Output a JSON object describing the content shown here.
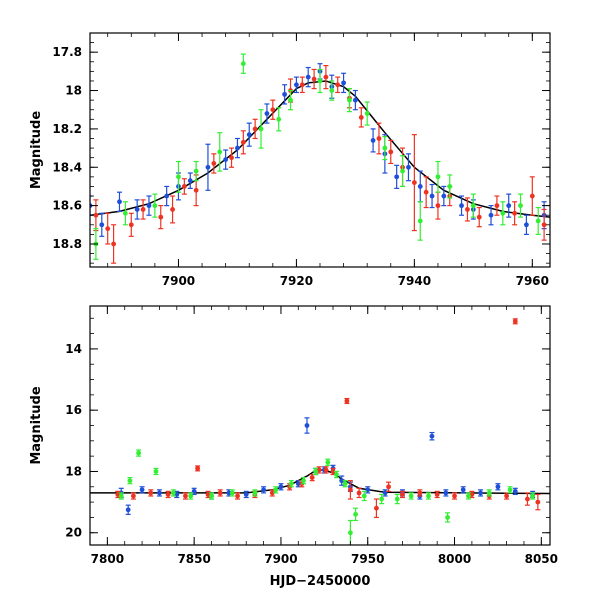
{
  "colors": {
    "blue": "#1f4fd8",
    "red": "#ee3322",
    "green": "#33ee33",
    "model": "#000000"
  },
  "chart_data": [
    {
      "type": "scatter",
      "panel": "top",
      "xlabel": "",
      "ylabel": "Magnitude",
      "xlim": [
        7885,
        7963
      ],
      "ylim": [
        18.92,
        17.7
      ],
      "y_inverted": true,
      "xticks": [
        7900,
        7920,
        7940,
        7960
      ],
      "yticks": [
        17.8,
        18.0,
        18.2,
        18.4,
        18.6,
        18.8
      ],
      "ytick_labels": [
        "17.8",
        "18",
        "18.2",
        "18.4",
        "18.6",
        "18.8"
      ],
      "model_curve": {
        "x": [
          7885,
          7890,
          7895,
          7900,
          7905,
          7910,
          7915,
          7920,
          7922,
          7925,
          7928,
          7930,
          7935,
          7940,
          7945,
          7950,
          7955,
          7960,
          7963
        ],
        "y": [
          18.65,
          18.63,
          18.59,
          18.52,
          18.43,
          18.31,
          18.15,
          17.99,
          17.96,
          17.95,
          17.98,
          18.03,
          18.22,
          18.4,
          18.52,
          18.59,
          18.63,
          18.65,
          18.66
        ]
      },
      "series_note": "Three photometric bands plotted as blue, red and green points with error bars",
      "series": [
        {
          "color": "blue",
          "x": [
            7885,
            7887,
            7890,
            7893,
            7895,
            7898,
            7900,
            7902,
            7905,
            7908,
            7910,
            7912,
            7915,
            7918,
            7920,
            7922,
            7924,
            7926,
            7928,
            7930,
            7933,
            7935,
            7937,
            7939,
            7941,
            7943,
            7945,
            7948,
            7950,
            7953,
            7956,
            7959,
            7962
          ],
          "y": [
            18.6,
            18.7,
            18.58,
            18.62,
            18.6,
            18.55,
            18.5,
            18.47,
            18.4,
            18.36,
            18.3,
            18.23,
            18.12,
            18.02,
            17.97,
            17.93,
            17.9,
            17.98,
            17.96,
            18.05,
            18.26,
            18.33,
            18.45,
            18.4,
            18.5,
            18.55,
            18.55,
            18.6,
            18.62,
            18.65,
            18.6,
            18.7,
            18.65
          ],
          "err": [
            0.05,
            0.06,
            0.05,
            0.05,
            0.05,
            0.05,
            0.07,
            0.04,
            0.12,
            0.05,
            0.05,
            0.06,
            0.05,
            0.05,
            0.04,
            0.05,
            0.04,
            0.06,
            0.05,
            0.05,
            0.06,
            0.1,
            0.06,
            0.07,
            0.08,
            0.06,
            0.05,
            0.05,
            0.05,
            0.05,
            0.06,
            0.05,
            0.07
          ]
        },
        {
          "color": "red",
          "x": [
            7886,
            7888,
            7889,
            7892,
            7894,
            7897,
            7899,
            7901,
            7903,
            7906,
            7909,
            7911,
            7913,
            7916,
            7919,
            7921,
            7923,
            7925,
            7927,
            7929,
            7931,
            7934,
            7936,
            7938,
            7940,
            7942,
            7944,
            7946,
            7949,
            7951,
            7954,
            7957,
            7960,
            7962
          ],
          "y": [
            18.65,
            18.72,
            18.8,
            18.7,
            18.62,
            18.66,
            18.62,
            18.5,
            18.52,
            18.38,
            18.35,
            18.27,
            18.2,
            18.1,
            18.0,
            17.97,
            17.94,
            17.93,
            17.97,
            18.04,
            18.14,
            18.25,
            18.32,
            18.4,
            18.48,
            18.53,
            18.6,
            18.55,
            18.62,
            18.66,
            18.6,
            18.64,
            18.55,
            18.7
          ],
          "err": [
            0.08,
            0.08,
            0.1,
            0.06,
            0.05,
            0.06,
            0.07,
            0.04,
            0.08,
            0.05,
            0.05,
            0.06,
            0.05,
            0.05,
            0.06,
            0.04,
            0.05,
            0.06,
            0.04,
            0.05,
            0.05,
            0.08,
            0.06,
            0.1,
            0.25,
            0.08,
            0.07,
            0.05,
            0.06,
            0.05,
            0.05,
            0.06,
            0.1,
            0.08
          ]
        },
        {
          "color": "green",
          "x": [
            7886,
            7891,
            7896,
            7900,
            7903,
            7907,
            7911,
            7914,
            7917,
            7919,
            7924,
            7926,
            7929,
            7932,
            7935,
            7938,
            7941,
            7944,
            7946,
            7950,
            7955,
            7958,
            7961
          ],
          "y": [
            18.8,
            18.64,
            18.6,
            18.45,
            18.42,
            18.32,
            17.86,
            18.2,
            18.15,
            18.05,
            17.95,
            18.0,
            18.05,
            18.12,
            18.3,
            18.42,
            18.68,
            18.45,
            18.5,
            18.6,
            18.64,
            18.6,
            18.68
          ],
          "err": [
            0.08,
            0.06,
            0.06,
            0.08,
            0.05,
            0.1,
            0.05,
            0.1,
            0.06,
            0.05,
            0.06,
            0.05,
            0.06,
            0.06,
            0.06,
            0.08,
            0.1,
            0.08,
            0.06,
            0.06,
            0.06,
            0.06,
            0.07
          ]
        }
      ]
    },
    {
      "type": "scatter",
      "panel": "bottom",
      "xlabel": "HJD−2450000",
      "ylabel": "Magnitude",
      "xlim": [
        7790,
        8055
      ],
      "ylim": [
        20.4,
        12.6
      ],
      "y_inverted": true,
      "xticks": [
        7800,
        7850,
        7900,
        7950,
        8000,
        8050
      ],
      "yticks": [
        14,
        16,
        18,
        20
      ],
      "ytick_labels": [
        "14",
        "16",
        "18",
        "20"
      ],
      "model_curve": {
        "x": [
          7790,
          7880,
          7895,
          7905,
          7915,
          7920,
          7925,
          7930,
          7935,
          7945,
          7960,
          8055
        ],
        "y": [
          18.7,
          18.7,
          18.6,
          18.45,
          18.15,
          17.97,
          17.95,
          18.05,
          18.25,
          18.55,
          18.68,
          18.72
        ]
      },
      "series": [
        {
          "color": "blue",
          "x": [
            7808,
            7812,
            7820,
            7830,
            7840,
            7850,
            7860,
            7870,
            7880,
            7890,
            7900,
            7910,
            7915,
            7920,
            7925,
            7930,
            7935,
            7940,
            7950,
            7960,
            7970,
            7980,
            7987,
            7995,
            8005,
            8015,
            8025,
            8035,
            8045
          ],
          "y": [
            18.7,
            19.25,
            18.6,
            18.7,
            18.75,
            18.65,
            18.8,
            18.7,
            18.75,
            18.6,
            18.5,
            18.4,
            16.5,
            18.0,
            17.95,
            17.9,
            18.3,
            18.5,
            18.6,
            18.7,
            18.7,
            18.8,
            16.85,
            18.7,
            18.6,
            18.7,
            18.5,
            18.65,
            18.75
          ],
          "err": [
            0.15,
            0.15,
            0.1,
            0.1,
            0.1,
            0.1,
            0.1,
            0.1,
            0.1,
            0.1,
            0.1,
            0.1,
            0.25,
            0.1,
            0.1,
            0.1,
            0.15,
            0.15,
            0.1,
            0.1,
            0.1,
            0.1,
            0.12,
            0.1,
            0.1,
            0.1,
            0.1,
            0.1,
            0.1
          ]
        },
        {
          "color": "red",
          "x": [
            7806,
            7815,
            7825,
            7835,
            7845,
            7852,
            7858,
            7865,
            7875,
            7885,
            7895,
            7905,
            7912,
            7918,
            7922,
            7926,
            7930,
            7938,
            7940,
            7945,
            7955,
            7962,
            7970,
            7980,
            7990,
            8000,
            8010,
            8020,
            8030,
            8035,
            8042,
            8048
          ],
          "y": [
            18.75,
            18.8,
            18.7,
            18.75,
            18.8,
            17.9,
            18.75,
            18.7,
            18.8,
            18.75,
            18.7,
            18.5,
            18.4,
            18.2,
            17.95,
            17.95,
            18.0,
            15.7,
            18.6,
            18.7,
            19.2,
            18.5,
            18.75,
            18.7,
            18.75,
            18.8,
            18.75,
            18.8,
            18.8,
            13.1,
            18.9,
            19.0
          ],
          "err": [
            0.1,
            0.1,
            0.1,
            0.1,
            0.1,
            0.08,
            0.1,
            0.1,
            0.1,
            0.1,
            0.1,
            0.1,
            0.1,
            0.1,
            0.1,
            0.1,
            0.1,
            0.08,
            0.3,
            0.15,
            0.3,
            0.15,
            0.1,
            0.1,
            0.1,
            0.1,
            0.1,
            0.1,
            0.1,
            0.08,
            0.2,
            0.25
          ]
        },
        {
          "color": "green",
          "x": [
            7808,
            7813,
            7818,
            7828,
            7838,
            7848,
            7860,
            7872,
            7885,
            7897,
            7906,
            7913,
            7920,
            7927,
            7932,
            7937,
            7940,
            7943,
            7948,
            7958,
            7967,
            7975,
            7985,
            7996,
            8008,
            8020,
            8032,
            8045
          ],
          "y": [
            18.8,
            18.3,
            17.4,
            18.0,
            18.7,
            18.8,
            18.8,
            18.7,
            18.7,
            18.6,
            18.4,
            18.3,
            18.0,
            17.7,
            18.1,
            18.4,
            20.0,
            19.4,
            18.8,
            18.9,
            18.9,
            18.8,
            18.8,
            19.5,
            18.8,
            18.7,
            18.6,
            18.8
          ],
          "err": [
            0.1,
            0.1,
            0.1,
            0.1,
            0.1,
            0.1,
            0.1,
            0.1,
            0.1,
            0.1,
            0.1,
            0.1,
            0.1,
            0.1,
            0.1,
            0.1,
            0.4,
            0.2,
            0.15,
            0.15,
            0.15,
            0.1,
            0.1,
            0.15,
            0.1,
            0.1,
            0.1,
            0.1
          ]
        }
      ]
    }
  ]
}
